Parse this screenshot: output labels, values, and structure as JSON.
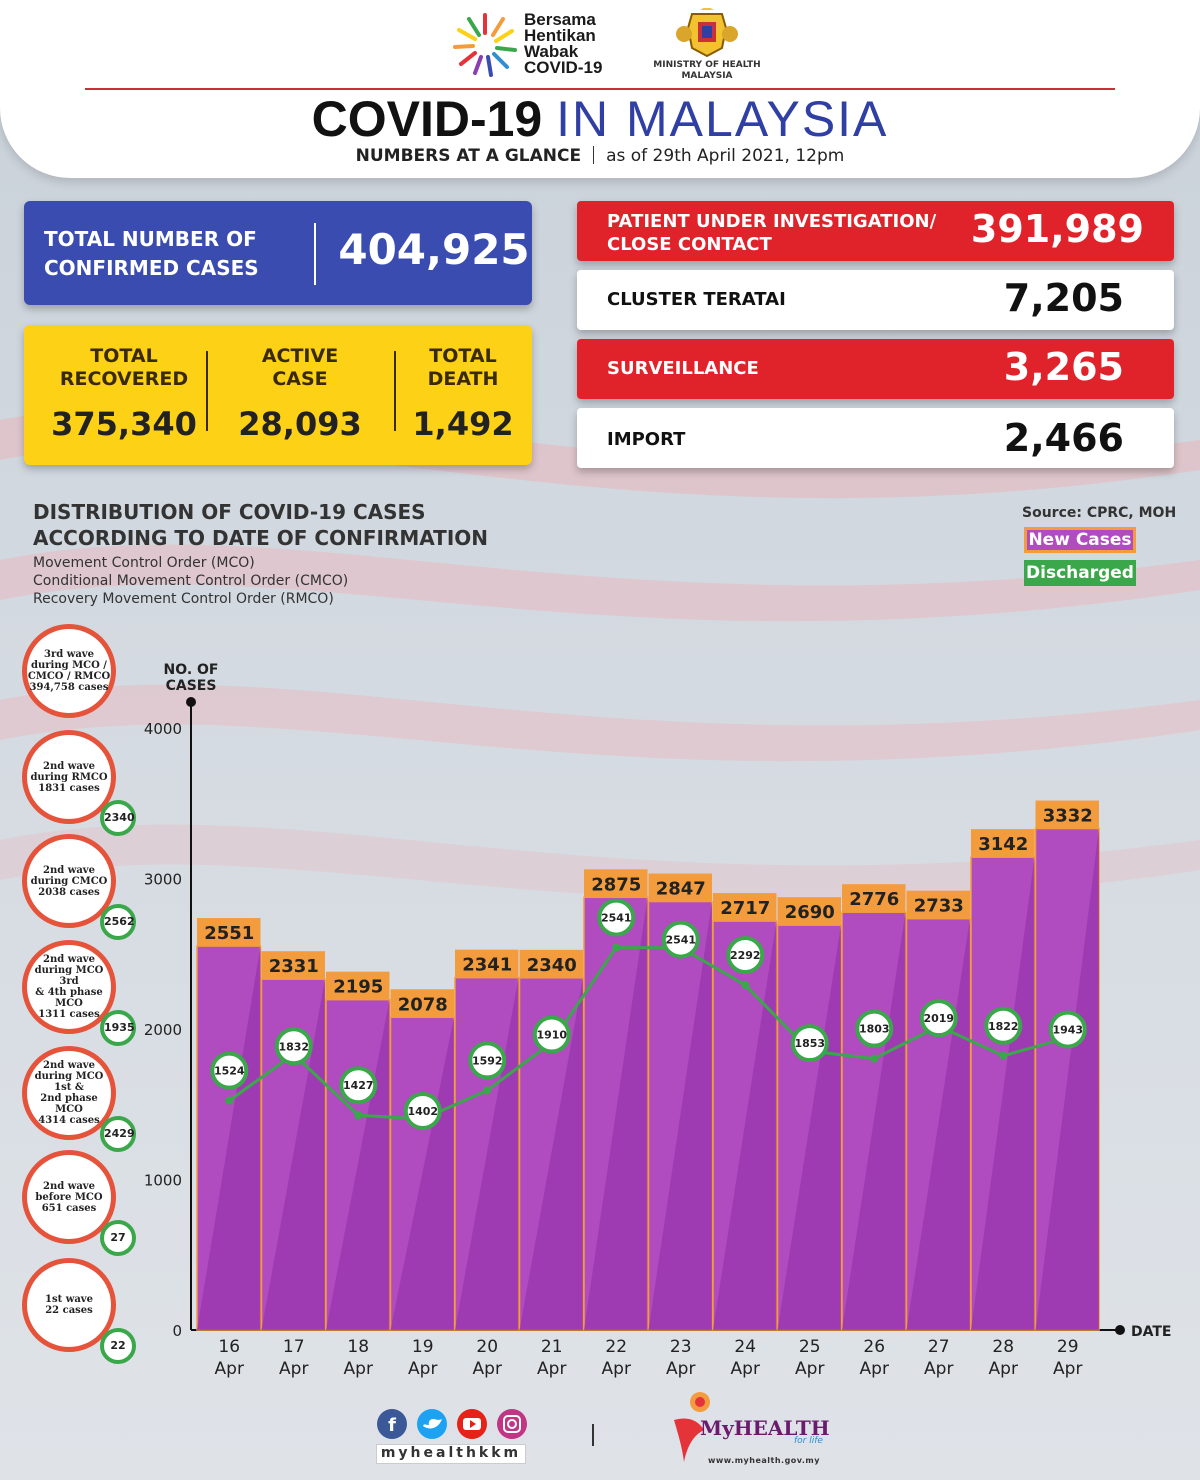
{
  "header": {
    "campaign_lines": [
      "Bersama",
      "Hentikan",
      "Wabak",
      "COVID-19"
    ],
    "ministry_lines": [
      "MINISTRY OF HEALTH",
      "MALAYSIA"
    ],
    "title_bold": "COVID-19",
    "title_light": "IN MALAYSIA",
    "subtitle_bold": "NUMBERS AT A GLANCE",
    "subtitle_date": "as of 29th April 2021, 12pm"
  },
  "stats": {
    "confirmed_label_1": "TOTAL NUMBER OF",
    "confirmed_label_2": "CONFIRMED CASES",
    "confirmed_value": "404,925",
    "recovered_label_1": "TOTAL",
    "recovered_label_2": "RECOVERED",
    "recovered_value": "375,340",
    "active_label_1": "ACTIVE",
    "active_label_2": "CASE",
    "active_value": "28,093",
    "death_label_1": "TOTAL",
    "death_label_2": "DEATH",
    "death_value": "1,492",
    "pui_label_1": "PATIENT UNDER INVESTIGATION/",
    "pui_label_2": "CLOSE CONTACT",
    "pui_value": "391,989",
    "cluster_label": "CLUSTER TERATAI",
    "cluster_value": "7,205",
    "surveillance_label": "SURVEILLANCE",
    "surveillance_value": "3,265",
    "import_label": "IMPORT",
    "import_value": "2,466"
  },
  "distribution": {
    "title_1": "DISTRIBUTION OF COVID-19 CASES",
    "title_2": "ACCORDING TO DATE OF CONFIRMATION",
    "notes": [
      "Movement Control Order (MCO)",
      "Conditional Movement Control Order (CMCO)",
      "Recovery Movement Control Order (RMCO)"
    ],
    "source": "Source: CPRC, MOH",
    "legend_new": "New Cases",
    "legend_discharged": "Discharged"
  },
  "waves": [
    {
      "lines": [
        "3rd wave",
        "during MCO /",
        "CMCO / RMCO"
      ],
      "cases": "394,758",
      "unit": "cases",
      "discharged": ""
    },
    {
      "lines": [
        "2nd wave",
        "during RMCO"
      ],
      "cases": "1831",
      "unit": "cases",
      "discharged": "2340"
    },
    {
      "lines": [
        "2nd wave",
        "during CMCO"
      ],
      "cases": "2038",
      "unit": "cases",
      "discharged": "2562"
    },
    {
      "lines": [
        "2nd wave",
        "during MCO 3rd",
        "& 4th phase MCO"
      ],
      "cases": "1311",
      "unit": "cases",
      "discharged": "1935"
    },
    {
      "lines": [
        "2nd wave",
        "during MCO 1st &",
        "2nd phase MCO"
      ],
      "cases": "4314",
      "unit": "cases",
      "discharged": "2429"
    },
    {
      "lines": [
        "2nd wave",
        "before MCO"
      ],
      "cases": "651",
      "unit": "cases",
      "discharged": "27"
    },
    {
      "lines": [
        "1st wave"
      ],
      "cases": "22",
      "unit": "cases",
      "discharged": "22"
    }
  ],
  "chart_data": {
    "type": "bar",
    "title": "DISTRIBUTION OF COVID-19 CASES ACCORDING TO DATE OF CONFIRMATION",
    "ylabel_1": "NO. OF",
    "ylabel_2": "CASES",
    "xlabel": "DATE",
    "ylim": [
      0,
      4000
    ],
    "yticks": [
      "0",
      "1000",
      "2000",
      "3000",
      "4000"
    ],
    "categories": [
      [
        "16",
        "Apr"
      ],
      [
        "17",
        "Apr"
      ],
      [
        "18",
        "Apr"
      ],
      [
        "19",
        "Apr"
      ],
      [
        "20",
        "Apr"
      ],
      [
        "21",
        "Apr"
      ],
      [
        "22",
        "Apr"
      ],
      [
        "23",
        "Apr"
      ],
      [
        "24",
        "Apr"
      ],
      [
        "25",
        "Apr"
      ],
      [
        "26",
        "Apr"
      ],
      [
        "27",
        "Apr"
      ],
      [
        "28",
        "Apr"
      ],
      [
        "29",
        "Apr"
      ]
    ],
    "series": [
      {
        "name": "New Cases",
        "type": "bar",
        "color": "#b04bc0",
        "values": [
          2551,
          2331,
          2195,
          2078,
          2341,
          2340,
          2875,
          2847,
          2717,
          2690,
          2776,
          2733,
          3142,
          3332
        ]
      },
      {
        "name": "Discharged",
        "type": "line",
        "color": "#3aa84a",
        "values": [
          1524,
          1832,
          1427,
          1402,
          1592,
          1910,
          2541,
          2541,
          2292,
          1853,
          1803,
          2019,
          1822,
          1943
        ]
      }
    ],
    "grid": false,
    "legend": "top-right"
  },
  "footer": {
    "social_handle": "myhealthkkm",
    "brand": "MyHEALTH",
    "tagline": "for life",
    "url": "www.myhealth.gov.my"
  },
  "colors": {
    "blue": "#3a4cb0",
    "yellow": "#fcd116",
    "red": "#e0232a",
    "purple": "#b04bc0",
    "orange": "#f39c3d",
    "green": "#3aa84a"
  }
}
